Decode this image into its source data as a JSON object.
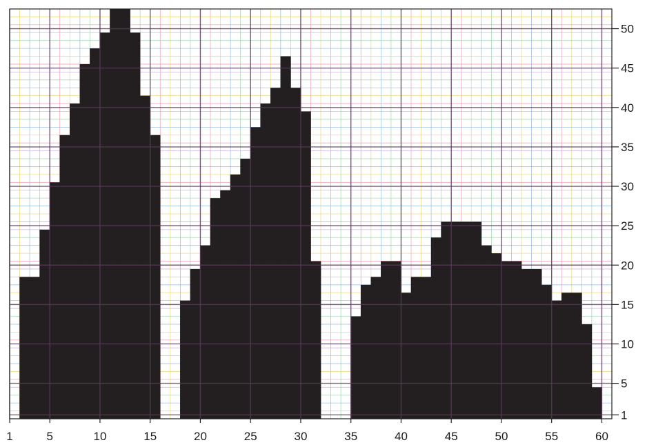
{
  "chart_data": {
    "type": "heatmap",
    "title": "",
    "xlabel": "",
    "ylabel": "",
    "xlim": [
      1,
      60
    ],
    "ylim": [
      1,
      51
    ],
    "x_tick_labels": [
      "1",
      "5",
      "10",
      "15",
      "20",
      "25",
      "30",
      "35",
      "40",
      "45",
      "50",
      "55",
      "60"
    ],
    "y_tick_labels": [
      "1",
      "5",
      "10",
      "15",
      "20",
      "25",
      "30",
      "35",
      "40",
      "45",
      "50"
    ],
    "y_axis_side": "right",
    "grid": true,
    "cell_color": "#231f20",
    "colors": {
      "fine_grid": [
        "#f08aa0",
        "#e8d060",
        "#7fb0e0",
        "#90d0a0",
        "#c0a0e0"
      ],
      "major_grid": "#5a3a5a",
      "background": "#ffffff"
    },
    "series": [
      {
        "name": "",
        "columns": [
          {
            "x": 2,
            "top": 18
          },
          {
            "x": 3,
            "top": 18
          },
          {
            "x": 4,
            "top": 24
          },
          {
            "x": 5,
            "top": 30
          },
          {
            "x": 6,
            "top": 36
          },
          {
            "x": 7,
            "top": 40
          },
          {
            "x": 8,
            "top": 45
          },
          {
            "x": 9,
            "top": 47
          },
          {
            "x": 10,
            "top": 49
          },
          {
            "x": 11,
            "top": 52
          },
          {
            "x": 12,
            "top": 52
          },
          {
            "x": 13,
            "top": 49
          },
          {
            "x": 14,
            "top": 41
          },
          {
            "x": 15,
            "top": 36
          }
        ]
      },
      {
        "name": "",
        "columns": [
          {
            "x": 18,
            "top": 15
          },
          {
            "x": 19,
            "top": 19
          },
          {
            "x": 20,
            "top": 22
          },
          {
            "x": 21,
            "top": 28
          },
          {
            "x": 22,
            "top": 29
          },
          {
            "x": 23,
            "top": 31
          },
          {
            "x": 24,
            "top": 33
          },
          {
            "x": 25,
            "top": 37
          },
          {
            "x": 26,
            "top": 40
          },
          {
            "x": 27,
            "top": 42
          },
          {
            "x": 28,
            "top": 46
          },
          {
            "x": 29,
            "top": 42
          },
          {
            "x": 30,
            "top": 39
          },
          {
            "x": 31,
            "top": 20
          }
        ]
      },
      {
        "name": "",
        "columns": [
          {
            "x": 35,
            "top": 13
          },
          {
            "x": 36,
            "top": 17
          },
          {
            "x": 37,
            "top": 18
          },
          {
            "x": 38,
            "top": 20
          },
          {
            "x": 39,
            "top": 20
          },
          {
            "x": 40,
            "top": 16
          },
          {
            "x": 41,
            "top": 18
          },
          {
            "x": 42,
            "top": 18
          },
          {
            "x": 43,
            "top": 23
          },
          {
            "x": 44,
            "top": 25
          },
          {
            "x": 45,
            "top": 25
          },
          {
            "x": 46,
            "top": 25
          },
          {
            "x": 47,
            "top": 25
          },
          {
            "x": 48,
            "top": 22
          },
          {
            "x": 49,
            "top": 21
          },
          {
            "x": 50,
            "top": 20
          },
          {
            "x": 51,
            "top": 20
          },
          {
            "x": 52,
            "top": 19
          },
          {
            "x": 53,
            "top": 19
          },
          {
            "x": 54,
            "top": 17
          },
          {
            "x": 55,
            "top": 15
          },
          {
            "x": 56,
            "top": 16
          },
          {
            "x": 57,
            "top": 16
          },
          {
            "x": 58,
            "top": 12
          },
          {
            "x": 59,
            "top": 4
          }
        ]
      }
    ]
  }
}
